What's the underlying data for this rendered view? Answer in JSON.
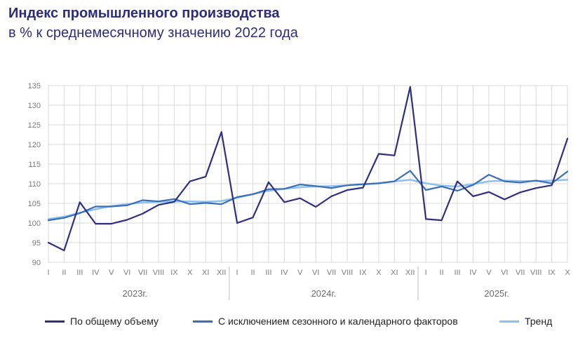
{
  "header": {
    "title": "Индекс промышленного производства",
    "subtitle": "в % к среднемесячному значению 2022 года"
  },
  "colors": {
    "series1": "#2e2f80",
    "series2": "#3a6fb7",
    "series3": "#8ec0ef",
    "grid": "#d9d9d9",
    "separator": "#bdbdbd"
  },
  "chart_data": {
    "type": "line",
    "ylim": [
      90,
      135
    ],
    "yticks": [
      90,
      95,
      100,
      105,
      110,
      115,
      120,
      125,
      130,
      135
    ],
    "x": [
      "I",
      "II",
      "III",
      "IV",
      "V",
      "VI",
      "VII",
      "VIII",
      "IX",
      "X",
      "XI",
      "XII",
      "I",
      "II",
      "III",
      "IV",
      "V",
      "VI",
      "VII",
      "VIII",
      "IX",
      "X",
      "XI",
      "XII",
      "I",
      "II",
      "III",
      "IV",
      "V",
      "VI",
      "VII",
      "VIII",
      "IX",
      "X"
    ],
    "years": [
      "2023г.",
      "2024г.",
      "2025г."
    ],
    "grid": true,
    "legend_position": "bottom",
    "series": [
      {
        "name": "По общему объему",
        "values": [
          95.0,
          93.0,
          105.3,
          99.8,
          99.8,
          100.8,
          102.4,
          104.6,
          105.4,
          110.6,
          111.8,
          123.2,
          100.0,
          101.4,
          110.4,
          105.3,
          106.3,
          104.1,
          106.8,
          108.4,
          109.0,
          117.6,
          117.2,
          134.7,
          101.0,
          100.7,
          110.6,
          106.8,
          107.9,
          106.0,
          107.8,
          108.9,
          109.6,
          121.5
        ]
      },
      {
        "name": "С исключением сезонного и календарного факторов",
        "values": [
          100.7,
          101.3,
          102.5,
          104.2,
          104.2,
          104.5,
          105.8,
          105.5,
          106.1,
          104.8,
          105.1,
          104.8,
          106.6,
          107.3,
          108.6,
          108.7,
          109.8,
          109.4,
          108.9,
          109.6,
          109.9,
          110.1,
          110.6,
          113.3,
          108.4,
          109.3,
          108.2,
          109.7,
          112.3,
          110.6,
          110.3,
          110.8,
          110.1,
          113.1
        ]
      },
      {
        "name": "Тренд",
        "values": [
          101.0,
          101.6,
          102.6,
          103.5,
          104.3,
          104.8,
          105.2,
          105.4,
          105.5,
          105.5,
          105.4,
          105.6,
          106.4,
          107.4,
          108.2,
          108.7,
          109.1,
          109.3,
          109.4,
          109.6,
          109.8,
          110.1,
          110.6,
          111.0,
          110.1,
          109.5,
          109.3,
          109.9,
          110.6,
          110.8,
          110.7,
          110.7,
          110.8,
          111.0
        ]
      }
    ]
  }
}
